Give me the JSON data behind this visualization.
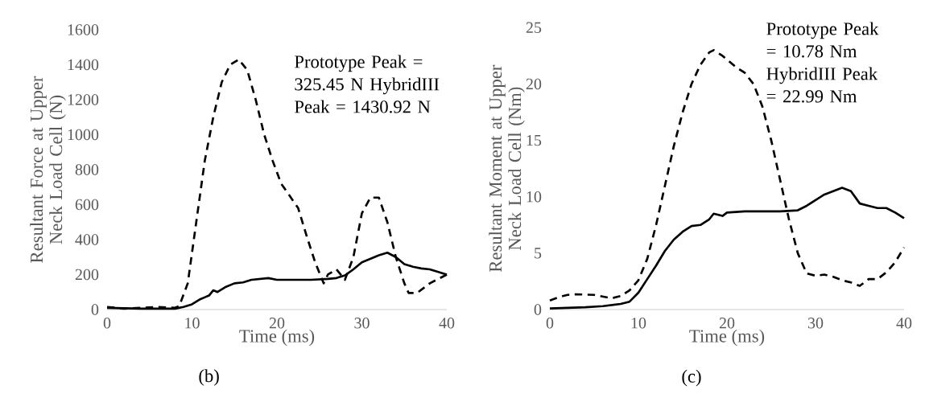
{
  "chart_data": [
    {
      "type": "line",
      "xlabel": "Time (ms)",
      "ylabel": "Resultant Force at Upper Neck Load Cell (N)",
      "xlim": [
        0,
        40
      ],
      "ylim": [
        0,
        1600
      ],
      "xticks": [
        0,
        10,
        20,
        30,
        40
      ],
      "yticks": [
        0,
        200,
        400,
        600,
        800,
        1000,
        1200,
        1400,
        1600
      ],
      "annotations": [
        "Prototype Peak = 325.45 N HybridIII Peak = 1430.92 N",
        "(b)"
      ],
      "series": [
        {
          "color": "#000000",
          "line_style": "dashed",
          "x": [
            0,
            2,
            4,
            6,
            8,
            8.5,
            9.5,
            10.5,
            11.5,
            12.5,
            13.5,
            14.5,
            15.5,
            16.5,
            17.5,
            18.5,
            19.5,
            20.5,
            21.5,
            22.5,
            23.5,
            24.5,
            25.5,
            26,
            27,
            28,
            29,
            30,
            31,
            32,
            33,
            34,
            35,
            35.5,
            36.5,
            38,
            40
          ],
          "values": [
            15,
            5,
            10,
            15,
            10,
            20,
            150,
            500,
            850,
            1100,
            1300,
            1400,
            1430,
            1370,
            1200,
            1000,
            850,
            720,
            650,
            580,
            420,
            270,
            150,
            200,
            230,
            170,
            300,
            550,
            640,
            640,
            500,
            300,
            150,
            95,
            95,
            150,
            200
          ]
        },
        {
          "color": "#000000",
          "line_style": "solid",
          "x": [
            0,
            4,
            8,
            9,
            10,
            11,
            12,
            12.5,
            13,
            14,
            15,
            16,
            17,
            18,
            19,
            20,
            22,
            24,
            26,
            27,
            28,
            29,
            30,
            31,
            32,
            33,
            34,
            35,
            36,
            37,
            38,
            39,
            40
          ],
          "values": [
            10,
            5,
            5,
            15,
            30,
            60,
            80,
            110,
            100,
            130,
            150,
            155,
            170,
            175,
            180,
            170,
            170,
            170,
            175,
            180,
            195,
            230,
            270,
            290,
            310,
            325,
            300,
            260,
            245,
            235,
            230,
            215,
            200
          ]
        }
      ]
    },
    {
      "type": "line",
      "xlabel": "Time (ms)",
      "ylabel": "Resultant Moment at Upper Neck Load Cell (Nm)",
      "xlim": [
        0,
        40
      ],
      "ylim": [
        0,
        25
      ],
      "xticks": [
        0,
        10,
        20,
        30,
        40
      ],
      "yticks": [
        0,
        5,
        10,
        15,
        20,
        25
      ],
      "annotations": [
        "Prototype Peak = 10.78 Nm HybridIII Peak = 22.99 Nm",
        "(c)"
      ],
      "series": [
        {
          "color": "#000000",
          "line_style": "dashed",
          "x": [
            0,
            1,
            2,
            3,
            5,
            7,
            8,
            9,
            10,
            11,
            12,
            13,
            14,
            15,
            16,
            17,
            18,
            18.5,
            19.5,
            21,
            22,
            23,
            24,
            25,
            26,
            27,
            28,
            29,
            30,
            31,
            32,
            33,
            34,
            35,
            36,
            37,
            38,
            39,
            40
          ],
          "values": [
            0.8,
            1.1,
            1.3,
            1.35,
            1.3,
            1.0,
            1.2,
            1.7,
            2.6,
            4.5,
            7.5,
            11,
            14.5,
            17.5,
            20,
            21.7,
            22.8,
            23,
            22.5,
            21.5,
            21,
            20,
            18,
            15,
            11.5,
            8,
            5,
            3.2,
            3.0,
            3.1,
            2.9,
            2.6,
            2.4,
            2.1,
            2.7,
            2.7,
            3.3,
            4.2,
            5.5
          ]
        },
        {
          "color": "#000000",
          "line_style": "solid",
          "x": [
            0,
            2,
            4,
            6,
            8,
            9,
            10,
            11,
            12,
            13,
            14,
            15,
            16,
            17,
            18,
            18.5,
            19.5,
            20,
            22,
            24,
            26,
            28,
            29,
            30,
            31,
            32,
            33,
            34,
            35,
            36,
            37,
            38,
            39,
            40
          ],
          "values": [
            0.1,
            0.15,
            0.2,
            0.3,
            0.5,
            0.7,
            1.5,
            2.7,
            3.9,
            5.2,
            6.2,
            6.9,
            7.4,
            7.5,
            8.0,
            8.5,
            8.3,
            8.6,
            8.7,
            8.7,
            8.7,
            8.8,
            9.2,
            9.7,
            10.2,
            10.5,
            10.8,
            10.5,
            9.4,
            9.2,
            9.0,
            9.0,
            8.6,
            8.1
          ]
        }
      ]
    }
  ]
}
